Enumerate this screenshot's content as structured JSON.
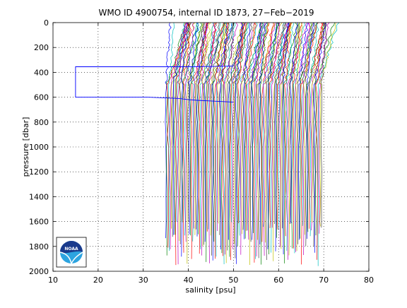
{
  "chart_data": {
    "type": "line",
    "title": "WMO ID 4900754, internal ID 1873, 27−Feb−2019",
    "xlabel": "salinity [psu]",
    "ylabel": "pressure [dbar]",
    "xlim": [
      10,
      80
    ],
    "ylim": [
      0,
      2000
    ],
    "y_reversed": true,
    "grid": true,
    "x_ticks": [
      10,
      20,
      30,
      40,
      50,
      60,
      70,
      80
    ],
    "y_ticks": [
      0,
      200,
      400,
      600,
      800,
      1000,
      1200,
      1400,
      1600,
      1800,
      2000
    ],
    "profile_count": 140,
    "profile_salinity_range": [
      35.0,
      69.5
    ],
    "profile_salinity_step": 0.25,
    "profile_max_pressure_range": [
      1600,
      1960
    ],
    "outlier_profile": {
      "x": [
        50,
        40,
        37,
        15,
        15,
        31,
        38,
        40,
        42,
        45,
        50
      ],
      "y": [
        350,
        355,
        355,
        355,
        600,
        600,
        610,
        620,
        625,
        630,
        640
      ]
    },
    "logo": {
      "text": "NOAA",
      "colors": [
        "#1a3a8c",
        "#2da4e0",
        "#00c6f0",
        "#ffffff"
      ]
    },
    "series_colors": [
      "#0000ff",
      "#008000",
      "#ff0000",
      "#00bfbf",
      "#bf00bf",
      "#bfbf00",
      "#404040"
    ]
  }
}
